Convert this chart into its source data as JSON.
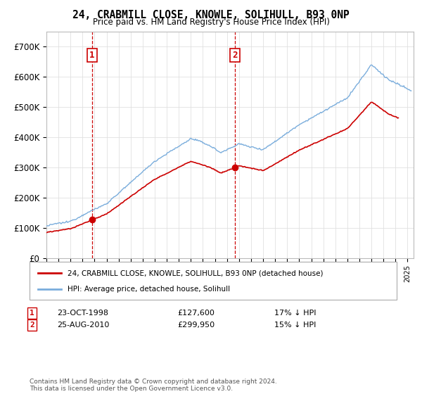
{
  "title": "24, CRABMILL CLOSE, KNOWLE, SOLIHULL, B93 0NP",
  "subtitle": "Price paid vs. HM Land Registry's House Price Index (HPI)",
  "legend_line1": "24, CRABMILL CLOSE, KNOWLE, SOLIHULL, B93 0NP (detached house)",
  "legend_line2": "HPI: Average price, detached house, Solihull",
  "transaction1_label": "1",
  "transaction1_date": "23-OCT-1998",
  "transaction1_price": "£127,600",
  "transaction1_hpi": "17% ↓ HPI",
  "transaction1_year": 1998.8,
  "transaction1_value": 127600,
  "transaction2_label": "2",
  "transaction2_date": "25-AUG-2010",
  "transaction2_price": "£299,950",
  "transaction2_hpi": "15% ↓ HPI",
  "transaction2_year": 2010.65,
  "transaction2_value": 299950,
  "footnote": "Contains HM Land Registry data © Crown copyright and database right 2024.\nThis data is licensed under the Open Government Licence v3.0.",
  "hpi_color": "#7aaddc",
  "price_color": "#cc0000",
  "background_color": "#ffffff",
  "grid_color": "#e0e0e0",
  "ylim": [
    0,
    750000
  ],
  "yticks": [
    0,
    100000,
    200000,
    300000,
    400000,
    500000,
    600000,
    700000
  ],
  "xmin": 1995,
  "xmax": 2025.5
}
